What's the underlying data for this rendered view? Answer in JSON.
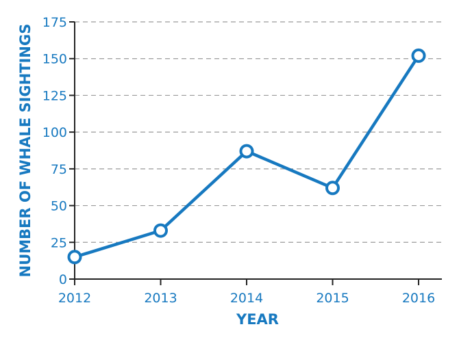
{
  "chart_data": {
    "type": "line",
    "title": "",
    "xlabel": "YEAR",
    "ylabel": "NUMBER OF WHALE SIGHTINGS",
    "categories": [
      "2012",
      "2013",
      "2014",
      "2015",
      "2016"
    ],
    "series": [
      {
        "values": [
          15,
          33,
          87,
          62,
          152
        ]
      }
    ],
    "ylim": [
      0,
      175
    ],
    "yticks": [
      0,
      25,
      50,
      75,
      100,
      125,
      150,
      175
    ],
    "grid": true,
    "grid_style": "dashed horizontal",
    "marker": "open circle",
    "line_color": "#1779c0",
    "text_color": "#1779c0"
  }
}
